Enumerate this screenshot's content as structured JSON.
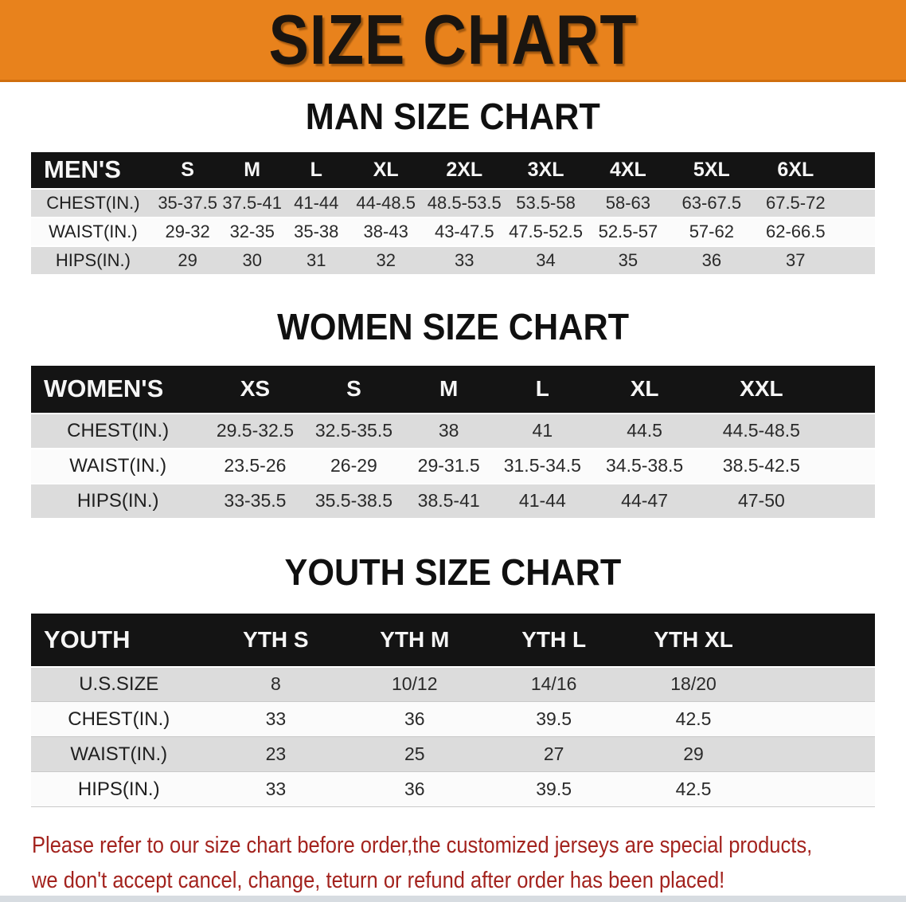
{
  "banner": {
    "title": "SIZE CHART"
  },
  "colors": {
    "banner_orange": "#E8821C",
    "header_black": "#141414",
    "row_gray": "#DCDCDC",
    "row_white": "#FBFBFB",
    "notice_red": "#A3231E",
    "bottom_bar_gray": "#D7DCE1"
  },
  "men_chart": {
    "title": "MAN SIZE CHART",
    "table": {
      "header": [
        "MEN'S",
        "S",
        "M",
        "L",
        "XL",
        "2XL",
        "3XL",
        "4XL",
        "5XL",
        "6XL"
      ],
      "rows": [
        {
          "label": "CHEST(IN.)",
          "values": [
            "35-37.5",
            "37.5-41",
            "41-44",
            "44-48.5",
            "48.5-53.5",
            "53.5-58",
            "58-63",
            "63-67.5",
            "67.5-72"
          ]
        },
        {
          "label": "WAIST(IN.)",
          "values": [
            "29-32",
            "32-35",
            "35-38",
            "38-43",
            "43-47.5",
            "47.5-52.5",
            "52.5-57",
            "57-62",
            "62-66.5"
          ]
        },
        {
          "label": "HIPS(IN.)",
          "values": [
            "29",
            "30",
            "31",
            "32",
            "33",
            "34",
            "35",
            "36",
            "37"
          ]
        }
      ]
    }
  },
  "women_chart": {
    "title": "WOMEN SIZE CHART",
    "table": {
      "header": [
        "WOMEN'S",
        "XS",
        "S",
        "M",
        "L",
        "XL",
        "XXL"
      ],
      "rows": [
        {
          "label": "CHEST(IN.)",
          "values": [
            "29.5-32.5",
            "32.5-35.5",
            "38",
            "41",
            "44.5",
            "44.5-48.5"
          ]
        },
        {
          "label": "WAIST(IN.)",
          "values": [
            "23.5-26",
            "26-29",
            "29-31.5",
            "31.5-34.5",
            "34.5-38.5",
            "38.5-42.5"
          ]
        },
        {
          "label": "HIPS(IN.)",
          "values": [
            "33-35.5",
            "35.5-38.5",
            "38.5-41",
            "41-44",
            "44-47",
            "47-50"
          ]
        }
      ]
    }
  },
  "youth_chart": {
    "title": "YOUTH SIZE CHART",
    "table": {
      "header": [
        "YOUTH",
        "YTH S",
        "YTH M",
        "YTH L",
        "YTH XL"
      ],
      "rows": [
        {
          "label": "U.S.SIZE",
          "values": [
            "8",
            "10/12",
            "14/16",
            "18/20"
          ]
        },
        {
          "label": "CHEST(IN.)",
          "values": [
            "33",
            "36",
            "39.5",
            "42.5"
          ]
        },
        {
          "label": "WAIST(IN.)",
          "values": [
            "23",
            "25",
            "27",
            "29"
          ]
        },
        {
          "label": "HIPS(IN.)",
          "values": [
            "33",
            "36",
            "39.5",
            "42.5"
          ]
        }
      ]
    }
  },
  "notice": {
    "line1": "Please refer to our size chart before order,the customized jerseys are special products,",
    "line2": "we don't accept cancel, change, teturn or refund after order has been placed!"
  }
}
